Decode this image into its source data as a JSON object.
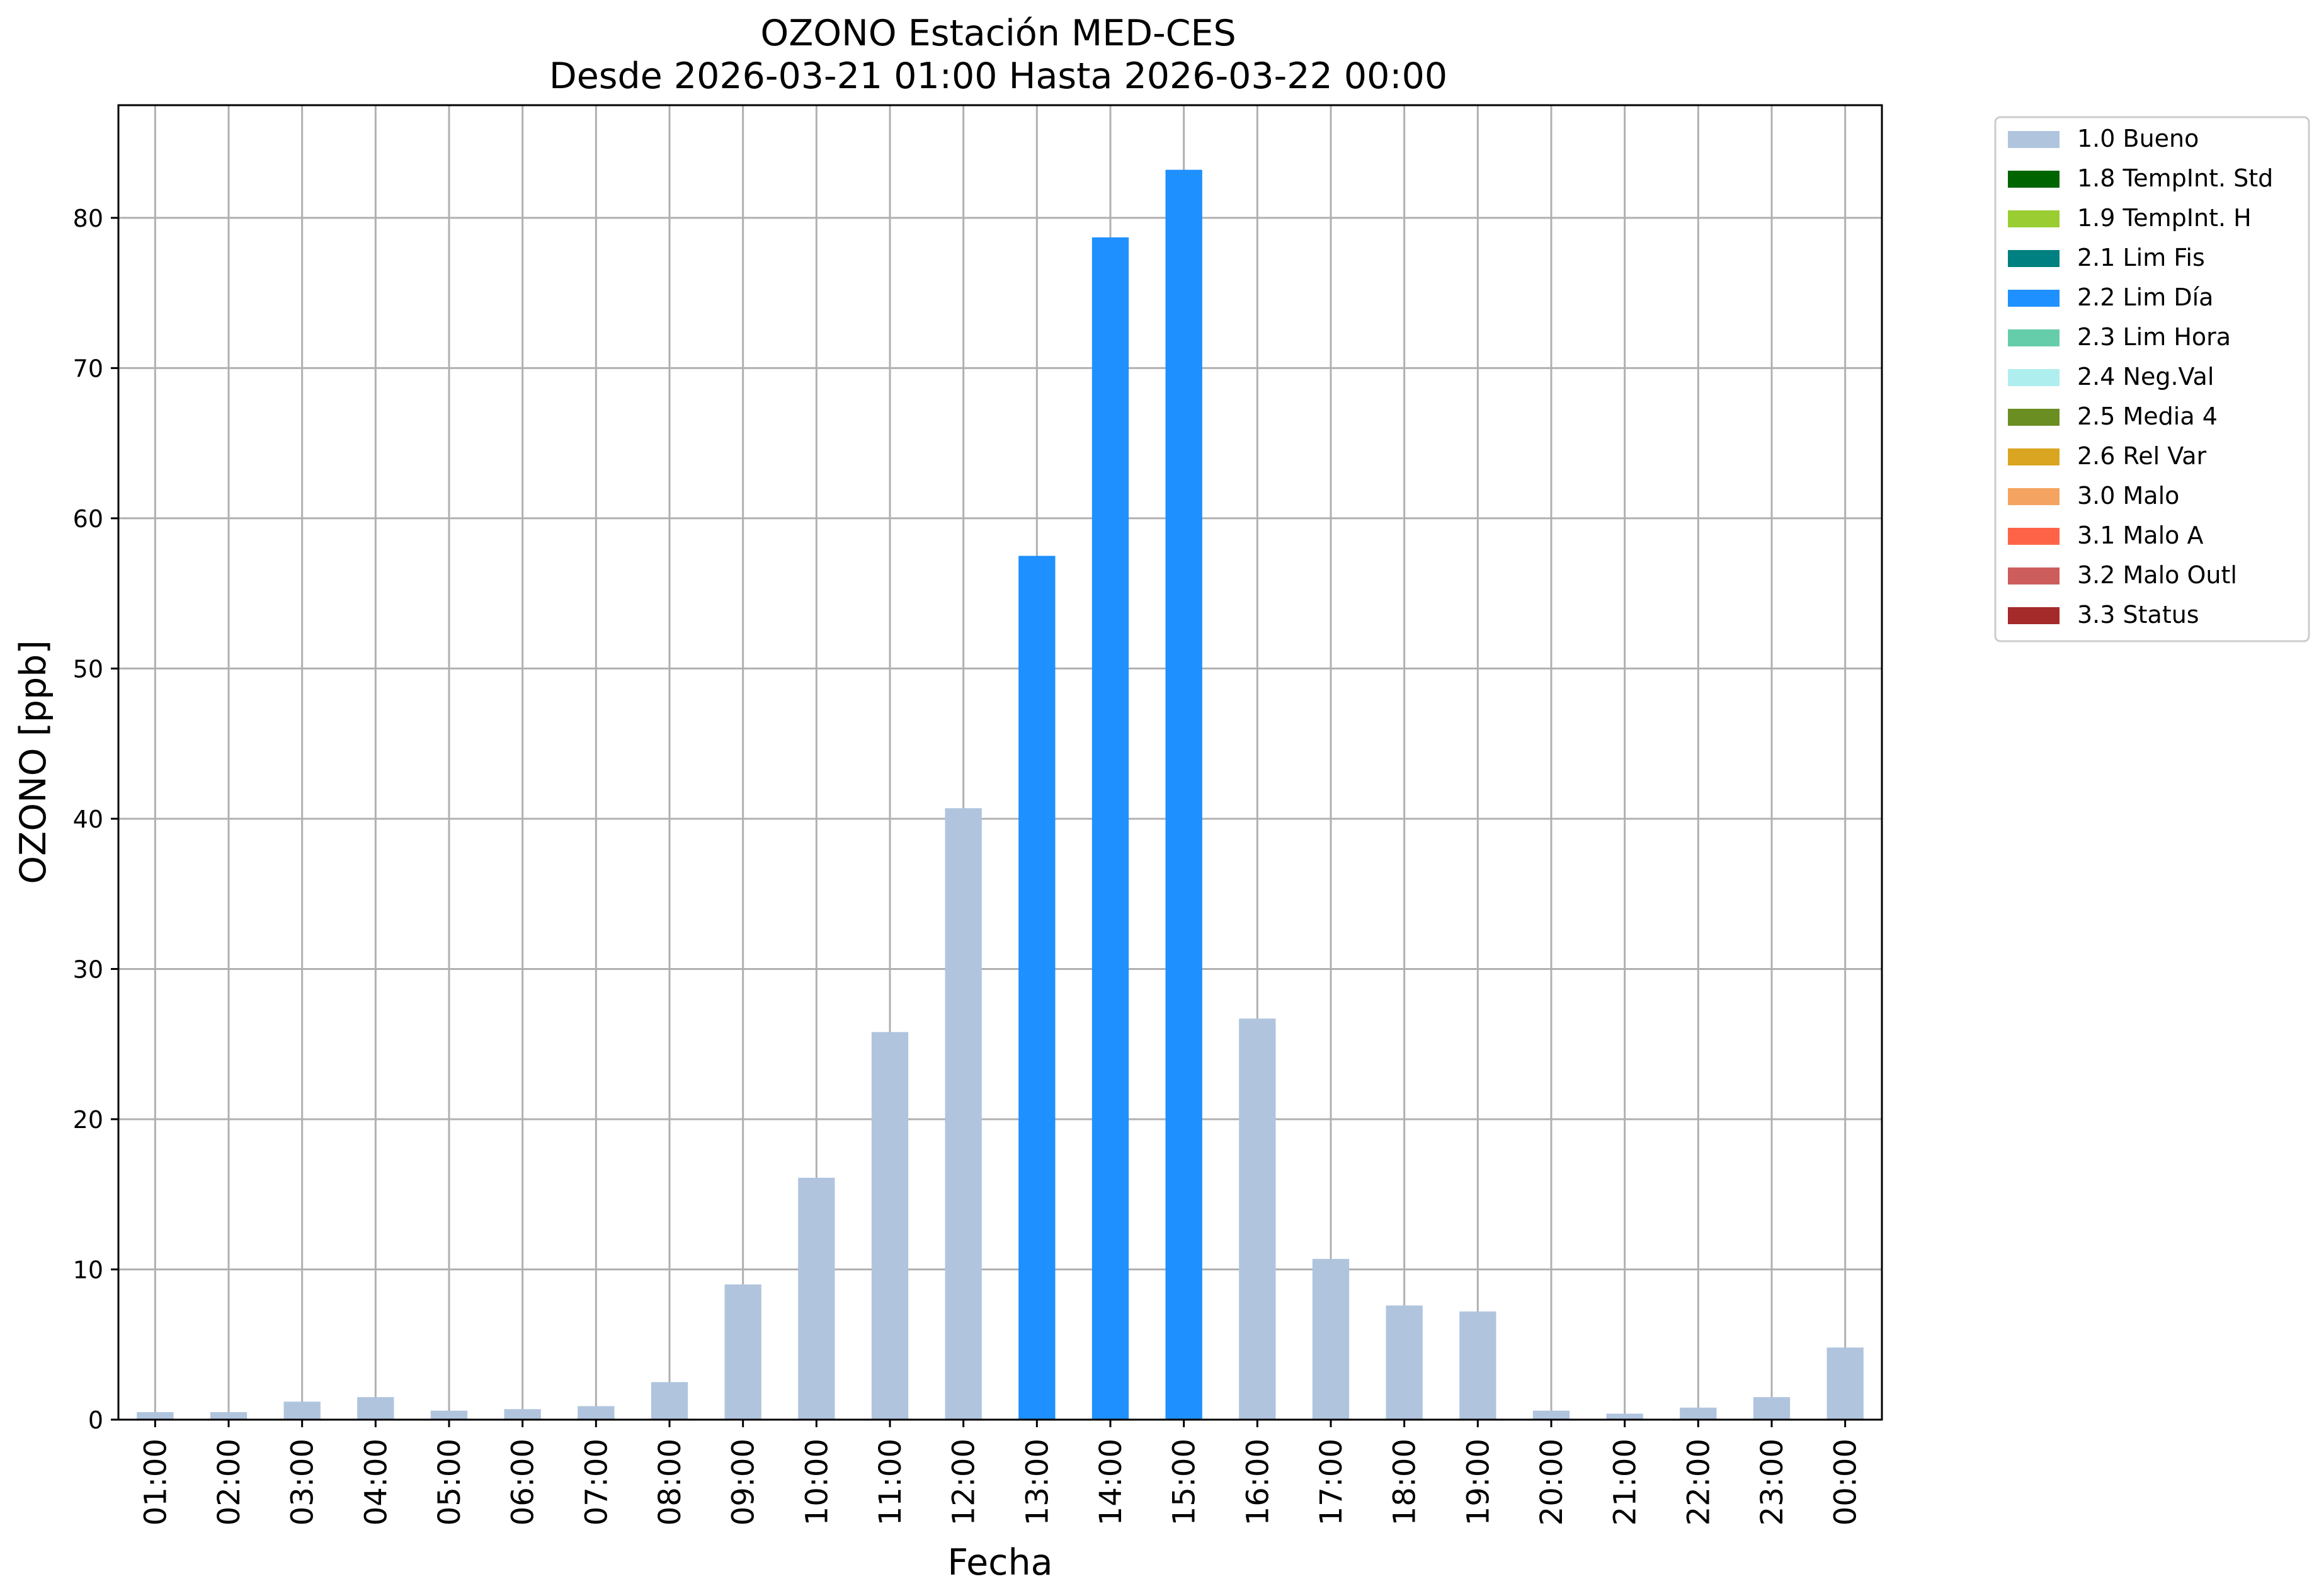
{
  "chart_data": {
    "type": "bar",
    "title": "OZONO Estación MED-CES",
    "subtitle": "Desde 2026-03-21 01:00 Hasta 2026-03-22 00:00",
    "xlabel": "Fecha",
    "ylabel": "OZONO [ppb]",
    "ylim": [
      0,
      87.5
    ],
    "yticks": [
      0,
      10,
      20,
      30,
      40,
      50,
      60,
      70,
      80
    ],
    "grid": true,
    "legend_position": "outside-top-right",
    "categories": [
      "01:00",
      "02:00",
      "03:00",
      "04:00",
      "05:00",
      "06:00",
      "07:00",
      "08:00",
      "09:00",
      "10:00",
      "11:00",
      "12:00",
      "13:00",
      "14:00",
      "15:00",
      "16:00",
      "17:00",
      "18:00",
      "19:00",
      "20:00",
      "21:00",
      "22:00",
      "23:00",
      "00:00"
    ],
    "values": [
      0.5,
      0.5,
      1.2,
      1.5,
      0.6,
      0.7,
      0.9,
      2.5,
      9.0,
      16.1,
      25.8,
      40.7,
      57.5,
      78.7,
      83.2,
      26.7,
      10.7,
      7.6,
      7.2,
      0.6,
      0.4,
      0.8,
      1.5,
      4.8
    ],
    "flags": [
      "1.0 Bueno",
      "1.0 Bueno",
      "1.0 Bueno",
      "1.0 Bueno",
      "1.0 Bueno",
      "1.0 Bueno",
      "1.0 Bueno",
      "1.0 Bueno",
      "1.0 Bueno",
      "1.0 Bueno",
      "1.0 Bueno",
      "1.0 Bueno",
      "2.2 Lim Día",
      "2.2 Lim Día",
      "2.2 Lim Día",
      "1.0 Bueno",
      "1.0 Bueno",
      "1.0 Bueno",
      "1.0 Bueno",
      "1.0 Bueno",
      "1.0 Bueno",
      "1.0 Bueno",
      "1.0 Bueno",
      "1.0 Bueno"
    ],
    "legend": [
      {
        "label": "1.0 Bueno",
        "color": "#b0c4de"
      },
      {
        "label": "1.8 TempInt. Std",
        "color": "#006400"
      },
      {
        "label": "1.9 TempInt. H",
        "color": "#9acd32"
      },
      {
        "label": "2.1 Lim Fis",
        "color": "#008080"
      },
      {
        "label": "2.2 Lim Día",
        "color": "#1e90ff"
      },
      {
        "label": "2.3 Lim Hora",
        "color": "#66cdaa"
      },
      {
        "label": "2.4 Neg.Val",
        "color": "#afeeee"
      },
      {
        "label": "2.5 Media 4",
        "color": "#6b8e23"
      },
      {
        "label": "2.6 Rel Var",
        "color": "#daa520"
      },
      {
        "label": "3.0 Malo",
        "color": "#f4a460"
      },
      {
        "label": "3.1 Malo A",
        "color": "#ff6347"
      },
      {
        "label": "3.2 Malo Outl",
        "color": "#cd5c5c"
      },
      {
        "label": "3.3 Status",
        "color": "#a52a2a"
      }
    ]
  }
}
